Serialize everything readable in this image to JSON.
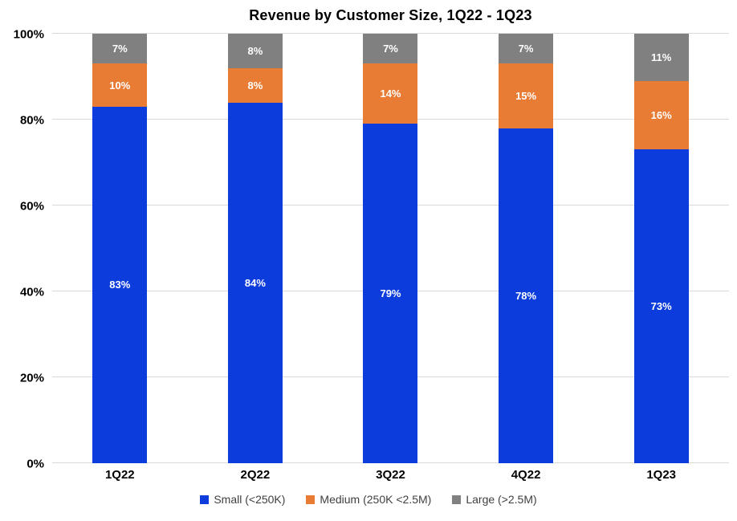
{
  "chart_data": {
    "type": "bar",
    "stacked": true,
    "title": "Revenue by Customer Size, 1Q22 - 1Q23",
    "categories": [
      "1Q22",
      "2Q22",
      "3Q22",
      "4Q22",
      "1Q23"
    ],
    "series": [
      {
        "name": "Small (<250K)",
        "color": "#0C3CDC",
        "values": [
          83,
          84,
          79,
          78,
          73
        ]
      },
      {
        "name": "Medium (250K <2.5M)",
        "color": "#E87C35",
        "values": [
          10,
          8,
          14,
          15,
          16
        ]
      },
      {
        "name": "Large (>2.5M)",
        "color": "#808080",
        "values": [
          7,
          8,
          7,
          7,
          11
        ]
      }
    ],
    "data_label_suffix": "%",
    "data_label_color": "#FFFFFF",
    "xlabel": "",
    "ylabel": "",
    "ylim": [
      0,
      100
    ],
    "yticks": [
      0,
      20,
      40,
      60,
      80,
      100
    ],
    "ytick_labels": [
      "0%",
      "20%",
      "40%",
      "60%",
      "80%",
      "100%"
    ],
    "grid": true,
    "gridline_color": "#D9D9D9",
    "legend_position": "bottom",
    "background_color": "#FFFFFF"
  }
}
